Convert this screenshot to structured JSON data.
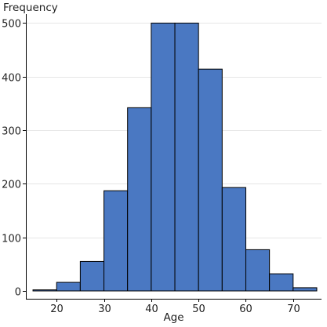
{
  "chart_data": {
    "type": "bar",
    "title": "",
    "xlabel": "Age",
    "ylabel": "Frequency",
    "bin_edges": [
      15,
      20,
      25,
      30,
      35,
      40,
      45,
      50,
      55,
      60,
      65,
      70,
      75
    ],
    "values": [
      2,
      16,
      55,
      187,
      342,
      500,
      500,
      414,
      193,
      77,
      32,
      6
    ],
    "xlim": [
      13.5,
      76
    ],
    "ylim": [
      0,
      505
    ],
    "xticks": [
      20,
      30,
      40,
      50,
      60,
      70
    ],
    "yticks": [
      0,
      100,
      200,
      300,
      400,
      500
    ],
    "grid": true,
    "legend": "none",
    "bar_color": "#4a78c2",
    "bar_edge_color": "#000000"
  }
}
